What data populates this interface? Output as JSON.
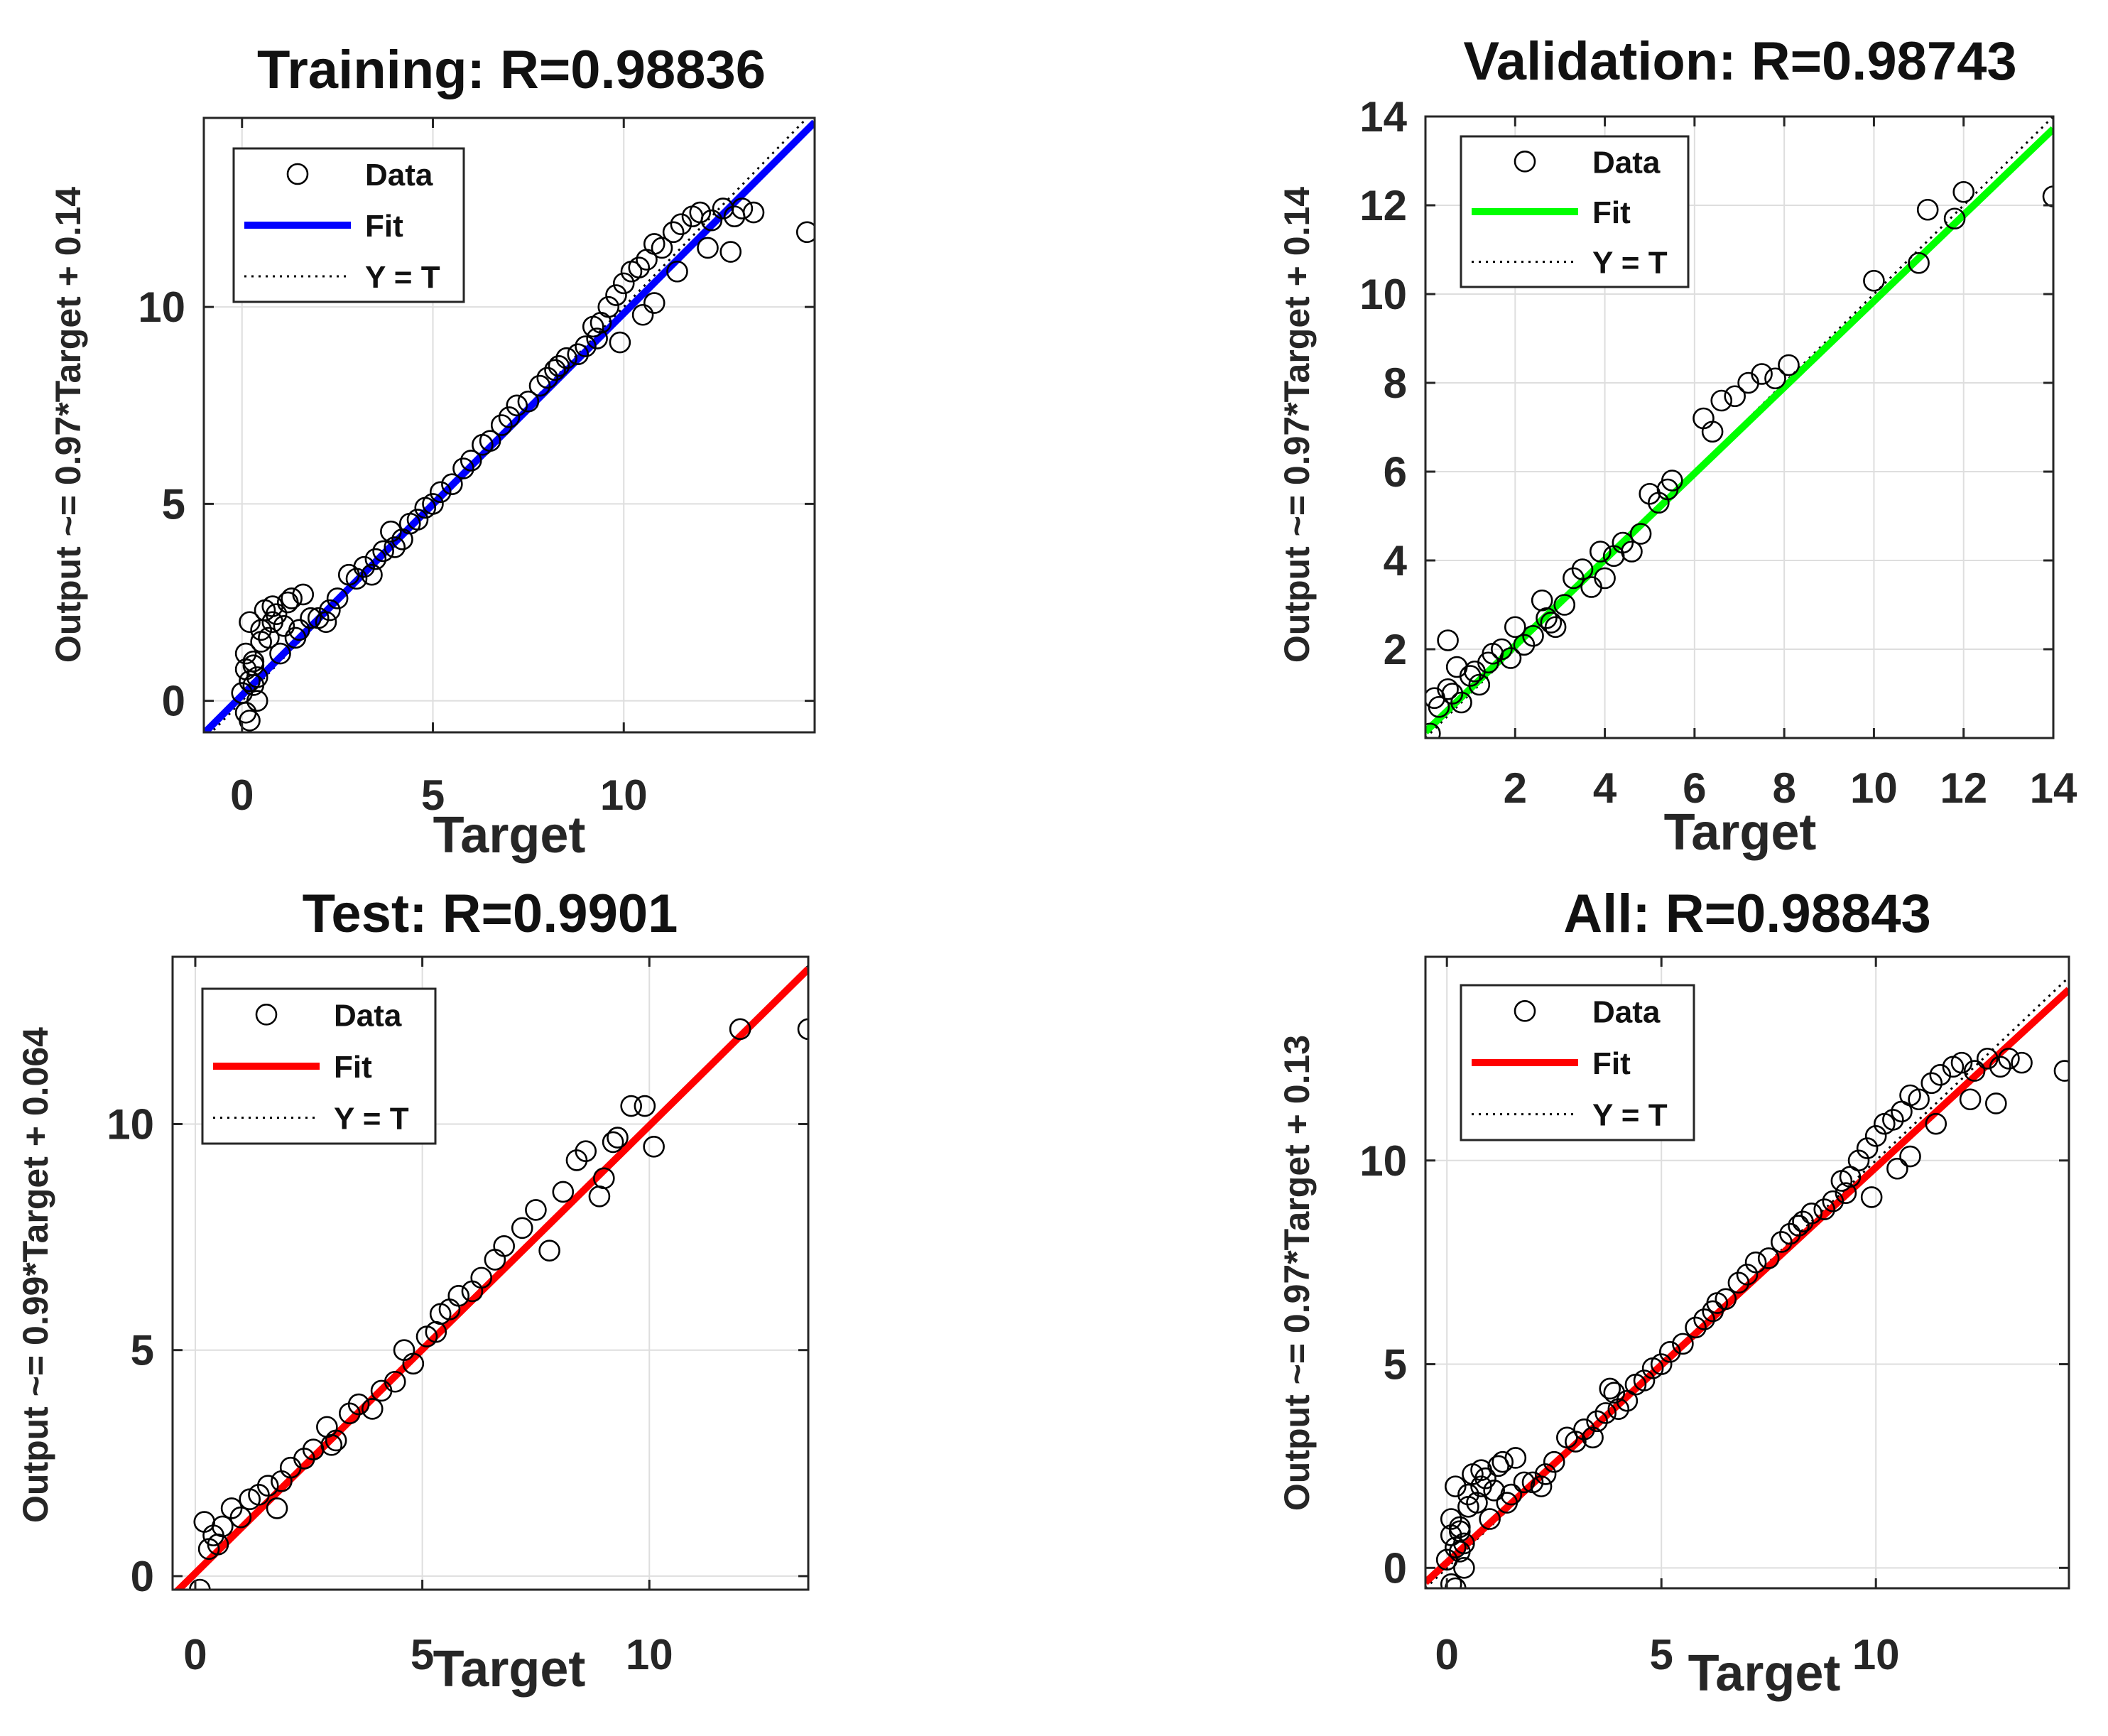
{
  "chart_data": [
    {
      "id": "training",
      "type": "scatter",
      "title": "Training: R=0.98836",
      "xlabel": "Target",
      "ylabel": "Output ~= 0.97*Target + 0.14",
      "xlim": [
        -1,
        15
      ],
      "ylim": [
        -0.8,
        14.8
      ],
      "xticks": [
        0,
        5,
        10
      ],
      "yticks": [
        0,
        5,
        10
      ],
      "grid": true,
      "legend": [
        "Data",
        "Fit",
        "Y = T"
      ],
      "legend_position": "top-left",
      "fit": {
        "slope": 0.97,
        "intercept": 0.14,
        "color": "#0000ff"
      },
      "series": [
        {
          "name": "Data",
          "marker": "circle",
          "x": [
            0.0,
            0.1,
            0.2,
            0.3,
            0.4,
            0.5,
            0.2,
            0.6,
            0.8,
            1.0,
            0.3,
            0.7,
            1.2,
            0.5,
            0.1,
            0.9,
            1.1,
            1.5,
            1.4,
            1.8,
            2.0,
            1.6,
            2.3,
            2.5,
            2.8,
            2.2,
            3.0,
            3.2,
            3.4,
            3.5,
            3.7,
            4.0,
            3.9,
            4.2,
            4.4,
            4.6,
            4.8,
            5.0,
            5.2,
            5.5,
            5.8,
            6.0,
            6.3,
            6.5,
            6.8,
            7.0,
            7.2,
            7.5,
            7.8,
            8.0,
            8.2,
            8.5,
            8.8,
            9.0,
            9.2,
            9.4,
            9.6,
            9.8,
            10.0,
            10.2,
            10.4,
            10.6,
            10.8,
            11.0,
            11.3,
            11.5,
            11.8,
            12.0,
            12.3,
            12.6,
            12.9,
            13.1,
            13.4,
            9.9,
            10.5,
            11.4,
            12.2,
            9.3,
            8.3,
            10.8,
            12.8,
            14.8,
            0.2,
            0.4,
            0.1,
            0.3,
            1.3,
            0.8
          ],
          "y": [
            0.2,
            -0.3,
            0.5,
            1.0,
            0.6,
            1.5,
            2.0,
            2.3,
            2.0,
            1.2,
            0.9,
            1.6,
            2.5,
            1.8,
            0.8,
            2.2,
            1.9,
            1.8,
            1.6,
            2.1,
            2.1,
            2.7,
            2.3,
            2.6,
            3.2,
            2.0,
            3.1,
            3.4,
            3.2,
            3.6,
            3.8,
            3.9,
            4.3,
            4.1,
            4.5,
            4.6,
            4.9,
            5.0,
            5.3,
            5.5,
            5.9,
            6.1,
            6.5,
            6.6,
            7.0,
            7.2,
            7.5,
            7.6,
            8.0,
            8.2,
            8.4,
            8.7,
            8.8,
            9.0,
            9.5,
            9.6,
            10.0,
            10.3,
            10.6,
            10.9,
            11.0,
            11.2,
            11.6,
            11.5,
            11.9,
            12.1,
            12.3,
            12.4,
            12.2,
            12.5,
            12.3,
            12.5,
            12.4,
            9.1,
            9.8,
            10.9,
            11.5,
            9.2,
            8.5,
            10.1,
            11.4,
            11.9,
            -0.5,
            0.0,
            1.2,
            0.4,
            2.6,
            2.4
          ]
        }
      ]
    },
    {
      "id": "validation",
      "type": "scatter",
      "title": "Validation: R=0.98743",
      "xlabel": "Target",
      "ylabel": "Output ~= 0.97*Target + 0.14",
      "xlim": [
        0,
        14
      ],
      "ylim": [
        0,
        14
      ],
      "xticks": [
        2,
        4,
        6,
        8,
        10,
        12,
        14
      ],
      "yticks": [
        2,
        4,
        6,
        8,
        10,
        12,
        14
      ],
      "grid": true,
      "legend": [
        "Data",
        "Fit",
        "Y = T"
      ],
      "legend_position": "top-left",
      "fit": {
        "slope": 0.97,
        "intercept": 0.14,
        "color": "#00ff00"
      },
      "series": [
        {
          "name": "Data",
          "marker": "circle",
          "x": [
            0.1,
            0.2,
            0.3,
            0.5,
            0.6,
            0.7,
            0.8,
            1.0,
            1.2,
            1.4,
            1.5,
            1.7,
            1.9,
            2.0,
            2.2,
            2.4,
            2.6,
            2.7,
            2.9,
            3.1,
            3.3,
            3.5,
            3.7,
            3.9,
            4.0,
            4.2,
            4.4,
            4.6,
            4.8,
            5.0,
            5.2,
            5.4,
            5.5,
            6.2,
            6.4,
            6.6,
            6.9,
            7.2,
            7.5,
            7.8,
            8.1,
            10.0,
            11.0,
            11.2,
            11.8,
            12.0,
            14.0,
            0.5,
            1.1,
            2.8
          ],
          "y": [
            0.1,
            0.9,
            0.7,
            2.2,
            1.0,
            1.6,
            0.8,
            1.4,
            1.2,
            1.7,
            1.9,
            2.0,
            1.8,
            2.5,
            2.1,
            2.3,
            3.1,
            2.7,
            2.5,
            3.0,
            3.6,
            3.8,
            3.4,
            4.2,
            3.6,
            4.1,
            4.4,
            4.2,
            4.6,
            5.5,
            5.3,
            5.6,
            5.8,
            7.2,
            6.9,
            7.6,
            7.7,
            8.0,
            8.2,
            8.1,
            8.4,
            10.3,
            10.7,
            11.9,
            11.7,
            12.3,
            12.2,
            1.1,
            1.5,
            2.6
          ]
        }
      ]
    },
    {
      "id": "test",
      "type": "scatter",
      "title": "Test: R=0.9901",
      "xlabel": "Target",
      "ylabel": "Output ~= 0.99*Target + 0.064",
      "xlim": [
        -0.5,
        13.5
      ],
      "ylim": [
        -0.3,
        13.7
      ],
      "xticks": [
        0,
        5,
        10
      ],
      "yticks": [
        0,
        5,
        10
      ],
      "grid": true,
      "legend": [
        "Data",
        "Fit",
        "Y = T"
      ],
      "legend_position": "top-left",
      "fit": {
        "slope": 0.99,
        "intercept": 0.064,
        "color": "#ff0000"
      },
      "series": [
        {
          "name": "Data",
          "marker": "circle",
          "x": [
            0.1,
            0.2,
            0.3,
            0.4,
            0.6,
            0.8,
            1.0,
            1.2,
            1.4,
            1.6,
            1.9,
            2.1,
            2.4,
            2.6,
            2.9,
            3.1,
            3.4,
            3.6,
            3.9,
            4.1,
            4.4,
            4.6,
            4.8,
            5.1,
            5.3,
            5.6,
            5.8,
            6.1,
            6.3,
            6.6,
            6.8,
            7.2,
            7.5,
            7.8,
            8.1,
            8.4,
            8.6,
            8.9,
            9.2,
            9.3,
            9.6,
            9.9,
            10.1,
            12.0,
            13.5,
            0.5,
            1.8,
            3.0,
            5.4,
            9.0
          ],
          "y": [
            -0.3,
            1.2,
            0.6,
            0.9,
            1.1,
            1.5,
            1.3,
            1.7,
            1.8,
            2.0,
            2.1,
            2.4,
            2.6,
            2.8,
            3.3,
            3.0,
            3.6,
            3.8,
            3.7,
            4.1,
            4.3,
            5.0,
            4.7,
            5.3,
            5.4,
            5.9,
            6.2,
            6.3,
            6.6,
            7.0,
            7.3,
            7.7,
            8.1,
            7.2,
            8.5,
            9.2,
            9.4,
            8.4,
            9.6,
            9.7,
            10.4,
            10.4,
            9.5,
            12.1,
            12.1,
            0.7,
            1.5,
            2.9,
            5.8,
            8.8
          ]
        }
      ]
    },
    {
      "id": "all",
      "type": "scatter",
      "title": "All: R=0.98843",
      "xlabel": "Target",
      "ylabel": "Output ~= 0.97*Target + 0.13",
      "xlim": [
        -0.5,
        14.5
      ],
      "ylim": [
        -0.5,
        15
      ],
      "xticks": [
        0,
        5,
        10
      ],
      "yticks": [
        0,
        5,
        10
      ],
      "grid": true,
      "legend": [
        "Data",
        "Fit",
        "Y = T"
      ],
      "legend_position": "top-left",
      "fit": {
        "slope": 0.97,
        "intercept": 0.13,
        "color": "#ff0000"
      },
      "series": [
        {
          "name": "Data",
          "marker": "circle",
          "x": [
            0.0,
            0.1,
            0.2,
            0.3,
            0.4,
            0.5,
            0.2,
            0.6,
            0.8,
            1.0,
            0.3,
            0.7,
            1.2,
            0.5,
            0.1,
            0.9,
            1.1,
            1.5,
            1.4,
            1.8,
            2.0,
            1.6,
            2.3,
            2.5,
            2.8,
            2.2,
            3.0,
            3.2,
            3.4,
            3.5,
            3.7,
            4.0,
            3.9,
            4.2,
            4.4,
            4.6,
            4.8,
            5.0,
            5.2,
            5.5,
            5.8,
            6.0,
            6.3,
            6.5,
            6.8,
            7.0,
            7.2,
            7.5,
            7.8,
            8.0,
            8.2,
            8.5,
            8.8,
            9.0,
            9.2,
            9.4,
            9.6,
            9.8,
            10.0,
            10.2,
            10.4,
            10.6,
            10.8,
            11.0,
            11.3,
            11.5,
            11.8,
            12.0,
            12.3,
            12.6,
            12.9,
            13.1,
            13.4,
            9.9,
            10.5,
            11.4,
            12.2,
            9.3,
            8.3,
            10.8,
            12.8,
            14.4,
            0.2,
            0.4,
            0.1,
            0.3,
            1.3,
            0.8,
            3.8,
            6.2
          ],
          "y": [
            0.2,
            -0.4,
            0.5,
            1.0,
            0.6,
            1.5,
            2.0,
            2.3,
            2.0,
            1.2,
            0.9,
            1.6,
            2.5,
            1.8,
            0.8,
            2.2,
            1.9,
            1.8,
            1.6,
            2.1,
            2.1,
            2.7,
            2.3,
            2.6,
            3.2,
            2.0,
            3.1,
            3.4,
            3.2,
            3.6,
            3.8,
            3.9,
            4.3,
            4.1,
            4.5,
            4.6,
            4.9,
            5.0,
            5.3,
            5.5,
            5.9,
            6.1,
            6.5,
            6.6,
            7.0,
            7.2,
            7.5,
            7.6,
            8.0,
            8.2,
            8.4,
            8.7,
            8.8,
            9.0,
            9.5,
            9.6,
            10.0,
            10.3,
            10.6,
            10.9,
            11.0,
            11.2,
            11.6,
            11.5,
            11.9,
            12.1,
            12.3,
            12.4,
            12.2,
            12.5,
            12.3,
            12.5,
            12.4,
            9.1,
            9.8,
            10.9,
            11.5,
            9.2,
            8.5,
            10.1,
            11.4,
            12.2,
            -0.5,
            0.0,
            1.2,
            0.4,
            2.6,
            2.4,
            4.4,
            6.3
          ]
        }
      ]
    }
  ]
}
